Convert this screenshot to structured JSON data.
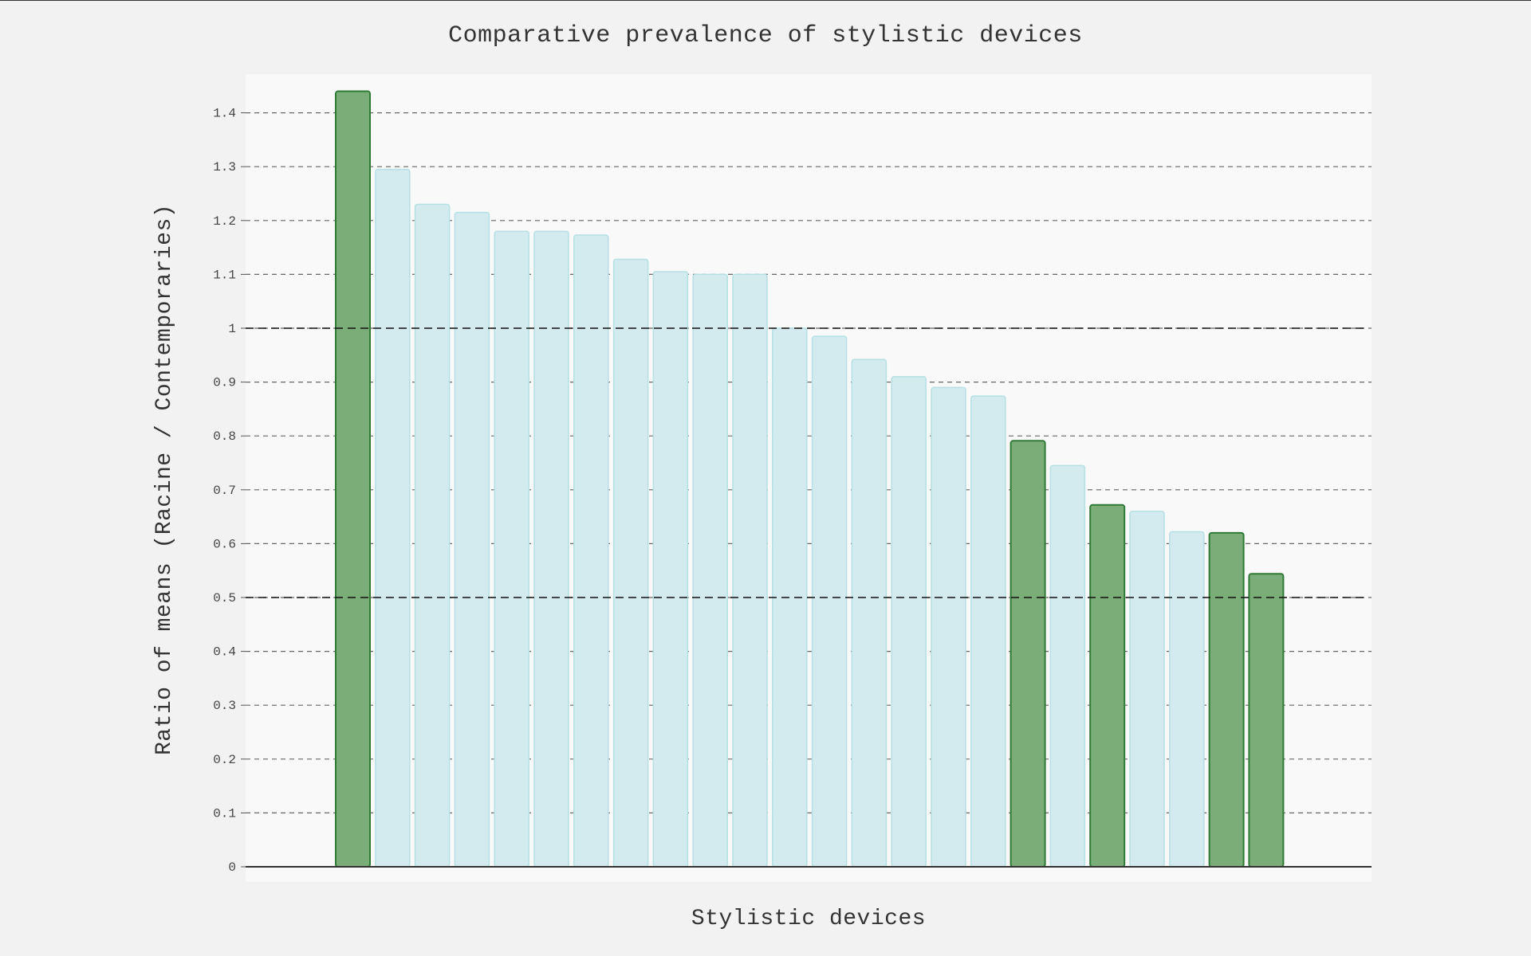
{
  "chart_data": {
    "type": "bar",
    "title": "Comparative prevalence of stylistic devices",
    "xlabel": "Stylistic devices",
    "ylabel": "Ratio of means (Racine / Contemporaries)",
    "ylim": [
      0,
      1.47
    ],
    "yticks": [
      0,
      0.1,
      0.2,
      0.3,
      0.4,
      0.5,
      0.6,
      0.7,
      0.8,
      0.9,
      1,
      1.1,
      1.2,
      1.3,
      1.4
    ],
    "ytick_labels": [
      "0",
      "0.1",
      "0.2",
      "0.3",
      "0.4",
      "0.5",
      "0.6",
      "0.7",
      "0.8",
      "0.9",
      "1",
      "1.1",
      "1.2",
      "1.3",
      "1.4"
    ],
    "reference_lines": [
      1,
      0.5
    ],
    "grid": true,
    "values": [
      1.44,
      1.295,
      1.23,
      1.215,
      1.18,
      1.18,
      1.173,
      1.128,
      1.105,
      1.1,
      1.1,
      1.0,
      0.985,
      0.942,
      0.91,
      0.89,
      0.874,
      0.791,
      0.745,
      0.672,
      0.66,
      0.622,
      0.62,
      0.544
    ],
    "highlighted": [
      true,
      false,
      false,
      false,
      false,
      false,
      false,
      false,
      false,
      false,
      false,
      false,
      false,
      false,
      false,
      false,
      false,
      true,
      false,
      true,
      false,
      false,
      true,
      true
    ],
    "colors": {
      "highlight_fill": "#7aad77",
      "highlight_stroke": "#2f7a35",
      "normal_fill": "#d3ebef",
      "normal_stroke": "#b5e0e4",
      "plot_bg": "#f9f9f9",
      "page_bg": "#f2f2f2"
    }
  }
}
